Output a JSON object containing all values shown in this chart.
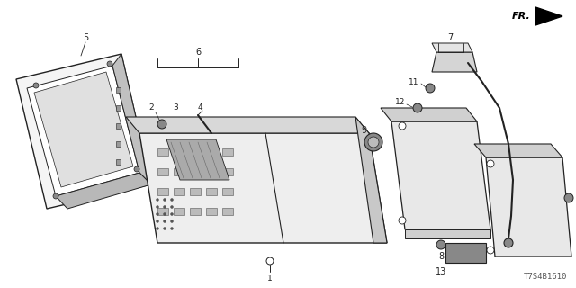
{
  "bg_color": "#ffffff",
  "line_color": "#222222",
  "watermark": "T7S4B1610",
  "fr_label": "FR."
}
